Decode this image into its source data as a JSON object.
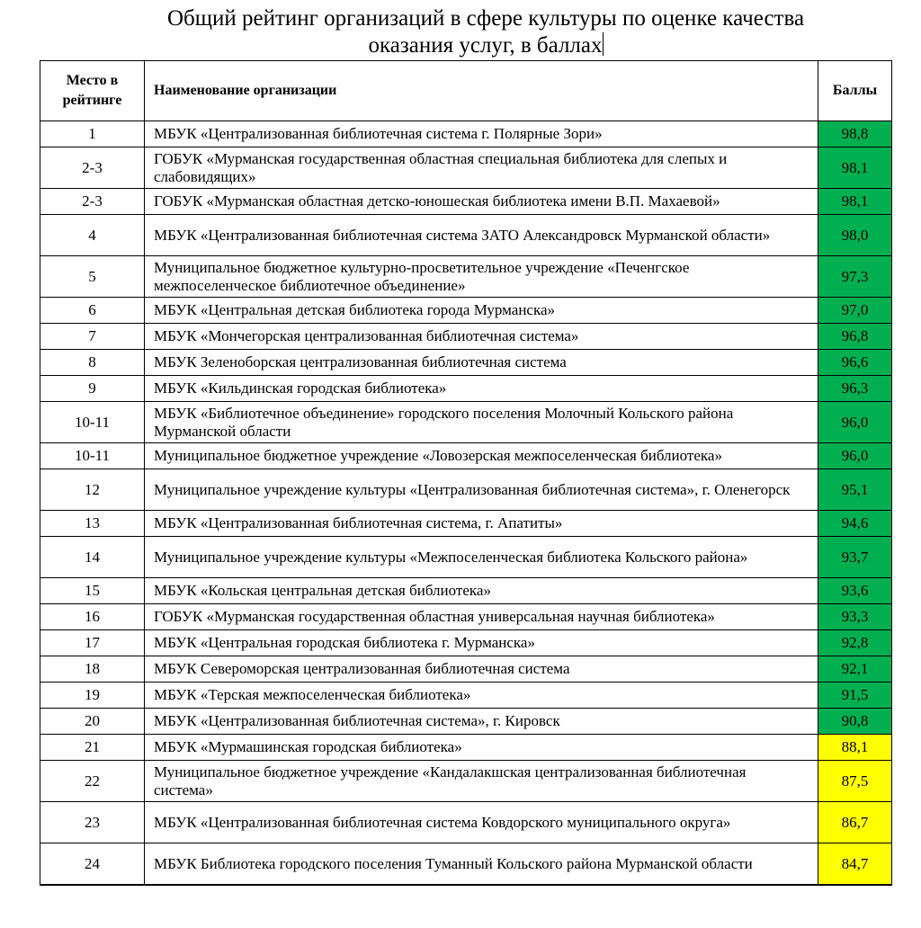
{
  "title_line1": "Общий рейтинг  организаций в сфере культуры по оценке качества",
  "title_line2": "оказания услуг, в баллах",
  "colors": {
    "green": "#00b050",
    "yellow": "#ffff00"
  },
  "headers": {
    "place": "Место в рейтинге",
    "name": "Наименование организации",
    "score": "Баллы"
  },
  "rows": [
    {
      "place": "1",
      "name": "МБУК  «Централизованная библиотечная система г. Полярные Зори»",
      "score": "98,8",
      "color": "green"
    },
    {
      "place": "2-3",
      "name": "ГОБУК «Мурманская государственная областная специальная библиотека для слепых и слабовидящих»",
      "score": "98,1",
      "color": "green"
    },
    {
      "place": "2-3",
      "name": "ГОБУК «Мурманская областная детско-юношеская библиотека имени В.П. Махаевой»",
      "score": "98,1",
      "color": "green"
    },
    {
      "place": "4",
      "name": "МБУК «Централизованная библиотечная система ЗАТО Александровск Мурманской области»",
      "score": "98,0",
      "color": "green"
    },
    {
      "place": "5",
      "name": "Муниципальное бюджетное культурно-просветительное учреждение «Печенгское межпоселенческое библиотечное объединение»",
      "score": "97,3",
      "color": "green"
    },
    {
      "place": "6",
      "name": "МБУК «Центральная детская библиотека города Мурманска»",
      "score": "97,0",
      "color": "green"
    },
    {
      "place": "7",
      "name": "МБУК «Мончегорская централизованная библиотечная система»",
      "score": "96,8",
      "color": "green"
    },
    {
      "place": "8",
      "name": "МБУК Зеленоборская централизованная библиотечная система",
      "score": "96,6",
      "color": "green"
    },
    {
      "place": "9",
      "name": "МБУК «Кильдинская городская библиотека»",
      "score": "96,3",
      "color": "green"
    },
    {
      "place": "10-11",
      "name": "МБУК «Библиотечное объединение» городского поселения Молочный Кольского района Мурманской области",
      "score": "96,0",
      "color": "green"
    },
    {
      "place": "10-11",
      "name": "Муниципальное бюджетное учреждение «Ловозерская межпоселенческая библиотека»",
      "score": "96,0",
      "color": "green"
    },
    {
      "place": "12",
      "name": "Муниципальное учреждение культуры «Централизованная библиотечная система», г. Оленегорск",
      "score": "95,1",
      "color": "green"
    },
    {
      "place": "13",
      "name": "МБУК «Централизованная библиотечная система, г. Апатиты»",
      "score": "94,6",
      "color": "green"
    },
    {
      "place": "14",
      "name": "Муниципальное учреждение культуры «Межпоселенческая библиотека Кольского района»",
      "score": "93,7",
      "color": "green"
    },
    {
      "place": "15",
      "name": "МБУК «Кольская центральная детская библиотека»",
      "score": "93,6",
      "color": "green"
    },
    {
      "place": "16",
      "name": "ГОБУК «Мурманская государственная областная универсальная научная библиотека»",
      "score": "93,3",
      "color": "green"
    },
    {
      "place": "17",
      "name": "МБУК «Центральная городская библиотека г. Мурманска»",
      "score": "92,8",
      "color": "green"
    },
    {
      "place": "18",
      "name": "МБУК Североморская централизованная библиотечная система",
      "score": "92,1",
      "color": "green"
    },
    {
      "place": "19",
      "name": "МБУК «Терская межпоселенческая библиотека»",
      "score": "91,5",
      "color": "green"
    },
    {
      "place": "20",
      "name": "МБУК «Централизованная библиотечная система», г. Кировск",
      "score": "90,8",
      "color": "green"
    },
    {
      "place": "21",
      "name": "МБУК «Мурмашинская городская библиотека»",
      "score": "88,1",
      "color": "yellow"
    },
    {
      "place": "22",
      "name": "Муниципальное бюджетное учреждение «Кандалакшская централизованная библиотечная система»",
      "score": "87,5",
      "color": "yellow"
    },
    {
      "place": "23",
      "name": "МБУК  «Централизованная библиотечная система Ковдорского муниципального округа»",
      "score": "86,7",
      "color": "yellow"
    },
    {
      "place": "24",
      "name": "МБУК Библиотека городского поселения Туманный Кольского района Мурманской области",
      "score": "84,7",
      "color": "yellow"
    }
  ]
}
